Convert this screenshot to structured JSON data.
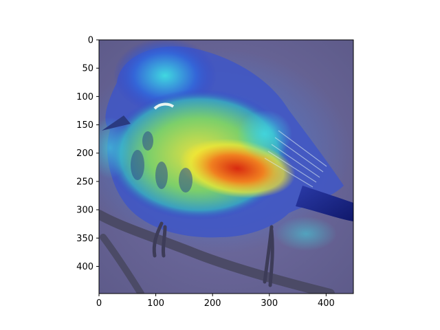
{
  "figure": {
    "type": "image-with-axes",
    "description_visible": "bird photo overlaid with a jet-colormap heatmap",
    "colormap": "jet",
    "background": "#ffffff",
    "x_axis": {
      "ticks": [
        0,
        100,
        200,
        300,
        400
      ],
      "tick_labels": [
        "0",
        "100",
        "200",
        "300",
        "400"
      ],
      "range": [
        0,
        448
      ]
    },
    "y_axis": {
      "ticks": [
        0,
        50,
        100,
        150,
        200,
        250,
        300,
        350,
        400
      ],
      "tick_labels": [
        "0",
        "50",
        "100",
        "150",
        "200",
        "250",
        "300",
        "350",
        "400"
      ],
      "range": [
        0,
        448
      ],
      "inverted": true
    },
    "colors": {
      "overlay_base": "#6a6898",
      "bird_blue": "#3344c8",
      "cyan": "#40d8e0",
      "yellow": "#f2e832",
      "orange": "#f08020",
      "red": "#d82a10",
      "branch": "#4b4a66",
      "navy": "#10186a"
    }
  }
}
